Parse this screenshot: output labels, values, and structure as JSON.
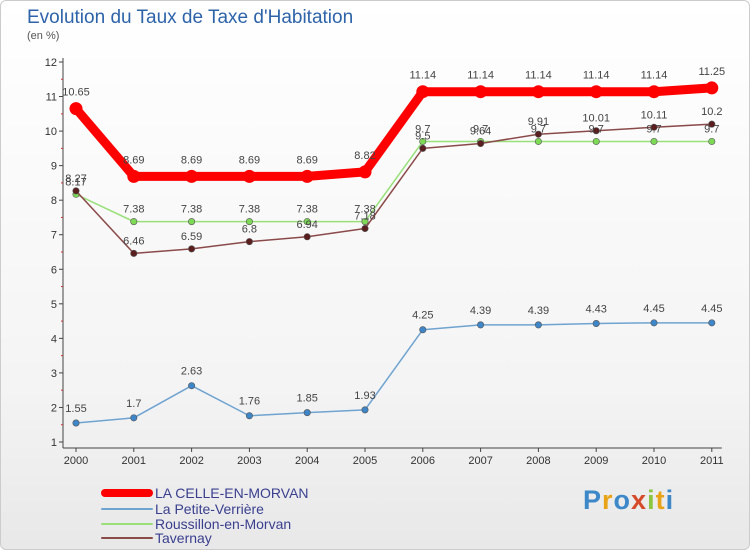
{
  "header": {
    "title": "Evolution du Taux de Taxe d'Habitation",
    "unit": "(en %)"
  },
  "logo": {
    "text": "Proxiti"
  },
  "chart_data": {
    "type": "line",
    "title": "Evolution du Taux de Taxe d'Habitation",
    "ylabel": "(en %)",
    "xlabel": "",
    "x": [
      2000,
      2001,
      2002,
      2003,
      2004,
      2005,
      2006,
      2007,
      2008,
      2009,
      2010,
      2011
    ],
    "x_labels": [
      "2000",
      "2001",
      "2002",
      "2003",
      "2004",
      "2005",
      "2006",
      "2007",
      "2008",
      "2009",
      "2010",
      "2011"
    ],
    "ylim": [
      1,
      12
    ],
    "y_ticks": [
      1,
      2,
      3,
      4,
      5,
      6,
      7,
      8,
      9,
      10,
      11,
      12
    ],
    "grid": false,
    "legend_position": "bottom-left",
    "series": [
      {
        "name": "LA CELLE-EN-MORVAN",
        "color": "#ff0000",
        "emphasis": "bold",
        "values": [
          10.65,
          8.69,
          8.69,
          8.69,
          8.69,
          8.82,
          11.14,
          11.14,
          11.14,
          11.14,
          11.14,
          11.25
        ],
        "labels": [
          "10.65",
          "8.69",
          "8.69",
          "8.69",
          "8.69",
          "8.82",
          "11.14",
          "11.14",
          "11.14",
          "11.14",
          "11.14",
          "11.25"
        ]
      },
      {
        "name": "La Petite-Verrière",
        "color": "#6fa3d0",
        "marker_color": "#3f86c8",
        "values": [
          1.55,
          1.7,
          2.63,
          1.76,
          1.85,
          1.93,
          4.25,
          4.39,
          4.39,
          4.43,
          4.45,
          4.45
        ],
        "labels": [
          "1.55",
          "1.7",
          "2.63",
          "1.76",
          "1.85",
          "1.93",
          "4.25",
          "4.39",
          "4.39",
          "4.43",
          "4.45",
          "4.45"
        ]
      },
      {
        "name": "Roussillon-en-Morvan",
        "color": "#99e07a",
        "marker_color": "#7ed957",
        "values": [
          8.17,
          7.38,
          7.38,
          7.38,
          7.38,
          7.38,
          9.7,
          9.7,
          9.7,
          9.7,
          9.7,
          9.7
        ],
        "labels": [
          "8.17",
          "7.38",
          "7.38",
          "7.38",
          "7.38",
          "7.38",
          "9.7",
          "9.7",
          "9.7",
          "9.7",
          "9.7",
          "9.7"
        ]
      },
      {
        "name": "Tavernay",
        "color": "#8b4a4a",
        "marker_color": "#5a1e1e",
        "values": [
          8.27,
          6.46,
          6.59,
          6.8,
          6.94,
          7.18,
          9.5,
          9.64,
          9.91,
          10.01,
          10.11,
          10.2
        ],
        "labels": [
          "8.27",
          "6.46",
          "6.59",
          "6.8",
          "6.94",
          "7.18",
          "9.5",
          "9.64",
          "9.91",
          "10.01",
          "10.11",
          "10.2"
        ]
      }
    ]
  }
}
